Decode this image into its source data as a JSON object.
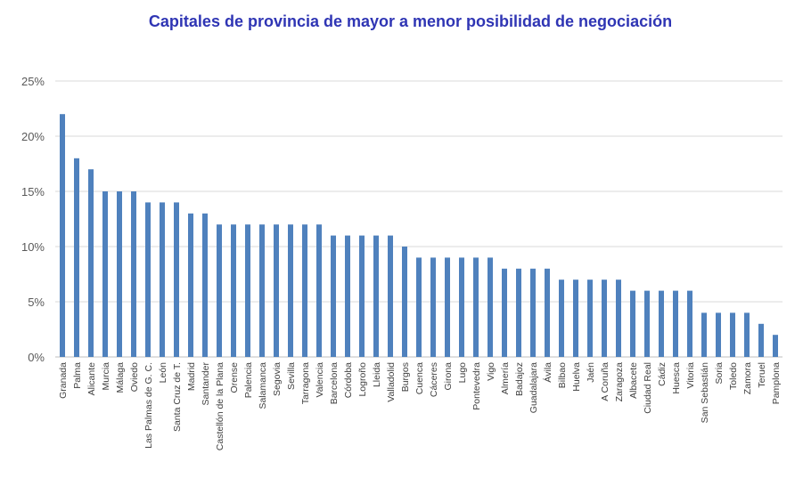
{
  "chart_data": {
    "type": "bar",
    "title": "Capitales de provincia de mayor a menor posibilidad de negociación",
    "xlabel": "",
    "ylabel": "",
    "ylim": [
      0,
      25
    ],
    "yticks": [
      "0%",
      "5%",
      "10%",
      "15%",
      "20%",
      "25%"
    ],
    "grid": true,
    "legend": "none",
    "bar_color": "#4f81bd",
    "categories": [
      "Granada",
      "Palma",
      "Alicante",
      "Murcia",
      "Málaga",
      "Oviedo",
      "Las Palmas de G. C.",
      "León",
      "Santa Cruz de T.",
      "Madrid",
      "Santander",
      "Castellón de la Plana",
      "Orense",
      "Palencia",
      "Salamanca",
      "Segovia",
      "Sevilla",
      "Tarragona",
      "Valencia",
      "Barcelona",
      "Córdoba",
      "Logroño",
      "Lleida",
      "Valladolid",
      "Burgos",
      "Cuenca",
      "Cáceres",
      "Girona",
      "Lugo",
      "Pontevedra",
      "Vigo",
      "Almería",
      "Badajoz",
      "Guadalajara",
      "Ávila",
      "Bilbao",
      "Huelva",
      "Jaén",
      "A Coruña",
      "Zaragoza",
      "Albacete",
      "Ciudad Real",
      "Cádiz",
      "Huesca",
      "Vitoria",
      "San Sebastián",
      "Soria",
      "Toledo",
      "Zamora",
      "Teruel",
      "Pamplona"
    ],
    "values": [
      22,
      18,
      17,
      15,
      15,
      15,
      14,
      14,
      14,
      13,
      13,
      12,
      12,
      12,
      12,
      12,
      12,
      12,
      12,
      11,
      11,
      11,
      11,
      11,
      10,
      9,
      9,
      9,
      9,
      9,
      9,
      8,
      8,
      8,
      8,
      7,
      7,
      7,
      7,
      7,
      6,
      6,
      6,
      6,
      6,
      4,
      4,
      4,
      4,
      3,
      2
    ]
  }
}
